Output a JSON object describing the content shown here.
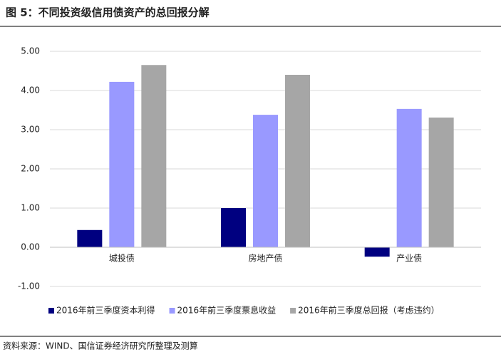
{
  "chart_data": {
    "type": "bar",
    "title": "图 5：不同投资级信用债资产的总回报分解",
    "source": "资料来源：WIND、国信证券经济研究所整理及测算",
    "categories": [
      "城投债",
      "房地产债",
      "产业债"
    ],
    "series": [
      {
        "name": "2016年前三季度资本利得",
        "color": "#000080",
        "values": [
          0.44,
          1.0,
          -0.24
        ]
      },
      {
        "name": "2016年前三季度票息收益",
        "color": "#9999ff",
        "values": [
          4.22,
          3.38,
          3.53
        ]
      },
      {
        "name": "2016年前三季度总回报（考虑违约）",
        "color": "#a6a6a6",
        "values": [
          4.65,
          4.4,
          3.31
        ]
      }
    ],
    "ylim": [
      -1,
      5
    ],
    "yticks": [
      {
        "value": -1,
        "label": "-1.00"
      },
      {
        "value": 0,
        "label": "0.00"
      },
      {
        "value": 1,
        "label": "1.00"
      },
      {
        "value": 2,
        "label": "2.00"
      },
      {
        "value": 3,
        "label": "3.00"
      },
      {
        "value": 4,
        "label": "4.00"
      },
      {
        "value": 5,
        "label": "5.00"
      }
    ],
    "grid": true,
    "legend": "bottom"
  }
}
